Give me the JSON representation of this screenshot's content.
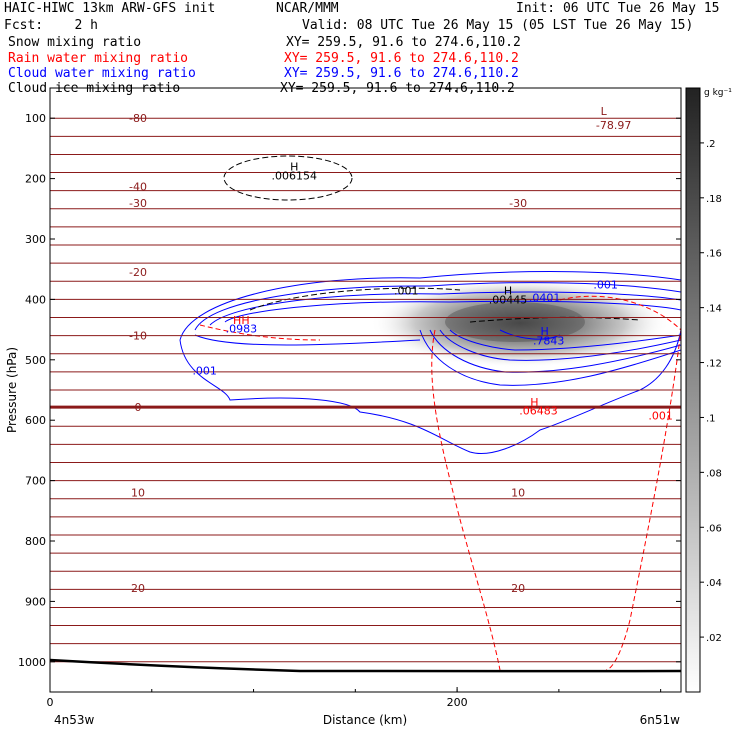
{
  "header": {
    "model": "HAIC-HIWC 13km ARW-GFS init",
    "org": "NCAR/MMM",
    "init": "Init: 06 UTC Tue 26 May 15",
    "fcst": "Fcst:    2 h",
    "valid": "Valid: 08 UTC Tue 26 May 15 (05 LST Tue 26 May 15)",
    "fields": [
      {
        "name": "Snow mixing ratio",
        "xy": "XY= 259.5, 91.6 to 274.6,110.2",
        "color": "#000000"
      },
      {
        "name": "Rain water mixing ratio",
        "xy": "XY= 259.5, 91.6 to 274.6,110.2",
        "color": "#ff0000"
      },
      {
        "name": "Cloud water mixing ratio",
        "xy": "XY= 259.5, 91.6 to 274.6,110.2",
        "color": "#0000ff"
      },
      {
        "name": "Cloud ice mixing ratio",
        "xy": "XY= 259.5, 91.6 to 274.6,110.2",
        "color": "#000000"
      }
    ]
  },
  "colorbar": {
    "unit": "g kg⁻¹",
    "ticks": [
      ".2",
      ".18",
      ".16",
      ".14",
      ".12",
      ".1",
      ".08",
      ".06",
      ".04",
      ".02"
    ]
  },
  "chart_data": {
    "type": "contour",
    "ylabel": "Pressure (hPa)",
    "xlabel": "Distance (km)",
    "x_ticks": [
      "0",
      "200"
    ],
    "x_endpoints": {
      "left": "4n53w",
      "right": "6n51w"
    },
    "y_ticks": [
      100,
      200,
      300,
      400,
      500,
      600,
      700,
      800,
      900,
      1000
    ],
    "ylim": [
      1050,
      50
    ],
    "xlim": [
      0,
      310
    ],
    "colorbar_range": [
      0,
      0.22
    ],
    "temperature_contours_c": {
      "color": "#8b1a1a",
      "levels": [
        {
          "p": 100,
          "t": "-80"
        },
        {
          "p": 213,
          "t": "-40"
        },
        {
          "p": 240,
          "t": "-30"
        },
        {
          "p": 355,
          "t": "-20"
        },
        {
          "p": 460,
          "t": "-10"
        },
        {
          "p": 578,
          "t": "0"
        },
        {
          "p": 720,
          "t": "10"
        },
        {
          "p": 878,
          "t": "20"
        }
      ],
      "extra_labels": [
        {
          "text": "-30",
          "x": 230,
          "p": 240
        },
        {
          "text": "10",
          "x": 230,
          "p": 720
        },
        {
          "text": "20",
          "x": 230,
          "p": 878
        }
      ],
      "low_label": {
        "text": "L",
        "value": "-78.97",
        "x": 272,
        "p": 95
      }
    },
    "contour_labels": [
      {
        "text": ".001",
        "x": 175,
        "p": 385,
        "color": "#000000"
      },
      {
        "text": ".001",
        "x": 273,
        "p": 375,
        "color": "#0000ff"
      },
      {
        "text": ".001",
        "x": 76,
        "p": 518,
        "color": "#0000ff"
      },
      {
        "text": ".001",
        "x": 300,
        "p": 592,
        "color": "#ff0000"
      },
      {
        "text": ".0401",
        "x": 243,
        "p": 397,
        "color": "#0000ff"
      },
      {
        "text": "H",
        "x": 120,
        "p": 180,
        "color": "#000000"
      },
      {
        "text": ".006154",
        "x": 120,
        "p": 195,
        "color": "#000000"
      },
      {
        "text": "H",
        "x": 225,
        "p": 385,
        "color": "#000000"
      },
      {
        "text": ".00445",
        "x": 225,
        "p": 400,
        "color": "#000000"
      },
      {
        "text": "HH",
        "x": 94,
        "p": 434,
        "color": "#ff0000"
      },
      {
        "text": ".0983",
        "x": 94,
        "p": 448,
        "color": "#0000ff"
      },
      {
        "text": "H",
        "x": 243,
        "p": 452,
        "color": "#0000ff"
      },
      {
        "text": ".7843",
        "x": 245,
        "p": 468,
        "color": "#0000ff"
      },
      {
        "text": "H",
        "x": 238,
        "p": 570,
        "color": "#ff0000"
      },
      {
        "text": ".06483",
        "x": 240,
        "p": 584,
        "color": "#ff0000"
      }
    ],
    "shaded_max": {
      "x": 230,
      "p": 435,
      "value": 0.2
    }
  }
}
